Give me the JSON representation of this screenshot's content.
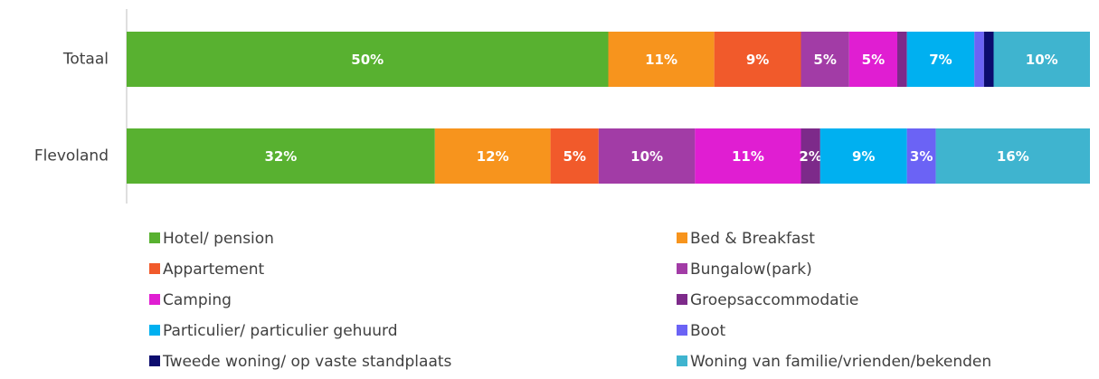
{
  "chart_data": {
    "type": "bar",
    "orientation": "horizontal",
    "stacked": true,
    "categories": [
      "Totaal",
      "Flevoland"
    ],
    "xlim": [
      0,
      100
    ],
    "series": [
      {
        "name": "Hotel/ pension",
        "color": "#58b130",
        "values": [
          50,
          32
        ],
        "value_labels": [
          "50%",
          "32%"
        ]
      },
      {
        "name": "Bed & Breakfast",
        "color": "#f7941d",
        "values": [
          11,
          12
        ],
        "value_labels": [
          "11%",
          "12%"
        ]
      },
      {
        "name": "Appartement",
        "color": "#f15a2b",
        "values": [
          9,
          5
        ],
        "value_labels": [
          "9%",
          "5%"
        ]
      },
      {
        "name": "Bungalow(park)",
        "color": "#a23ca6",
        "values": [
          5,
          10
        ],
        "value_labels": [
          "5%",
          "10%"
        ]
      },
      {
        "name": "Camping",
        "color": "#e01ed2",
        "values": [
          5,
          11
        ],
        "value_labels": [
          "5%",
          "11%"
        ]
      },
      {
        "name": "Groepsaccommodatie",
        "color": "#7d2a8a",
        "values": [
          1,
          2
        ],
        "value_labels": [
          null,
          "2%"
        ]
      },
      {
        "name": "Particulier/ particulier gehuurd",
        "color": "#00b0f0",
        "values": [
          7,
          9
        ],
        "value_labels": [
          "7%",
          "9%"
        ]
      },
      {
        "name": "Boot",
        "color": "#6b63f5",
        "values": [
          1,
          3
        ],
        "value_labels": [
          null,
          "3%"
        ]
      },
      {
        "name": "Tweede woning/ op vaste standplaats",
        "color": "#0c0c6e",
        "values": [
          1,
          0
        ],
        "value_labels": [
          null,
          null
        ]
      },
      {
        "name": "Woning van familie/vrienden/bekenden",
        "color": "#3fb4cf",
        "values": [
          10,
          16
        ],
        "value_labels": [
          "10%",
          "16%"
        ]
      }
    ]
  }
}
